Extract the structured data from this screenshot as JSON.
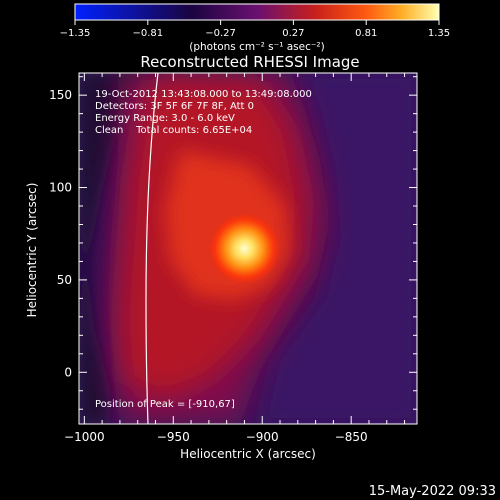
{
  "chart_data": {
    "type": "heatmap",
    "title": "Reconstructed RHESSI Image",
    "xlabel": "Heliocentric X (arcsec)",
    "ylabel": "Heliocentric Y (arcsec)",
    "xlim": [
      -1003,
      -813
    ],
    "ylim": [
      -28,
      162
    ],
    "x_ticks": [
      -1000,
      -950,
      -900,
      -850
    ],
    "y_ticks": [
      0,
      50,
      100,
      150
    ],
    "colorbar": {
      "min": -1.35,
      "max": 1.35,
      "ticks": [
        "-1.35",
        "-0.81",
        "-0.27",
        "0.27",
        "0.81",
        "1.35"
      ],
      "unit_label": "(photons cm⁻² s⁻¹ asec⁻²)",
      "colors": [
        "#0020ff",
        "#000000",
        "#3a0a5a",
        "#b01e28",
        "#ff3a10",
        "#ffb020",
        "#ffffb0"
      ]
    },
    "annotations": [
      "19-Oct-2012 13:43:08.000 to 13:49:08.000",
      "Detectors: 3F 5F 6F 7F 8F, Att 0",
      "Energy Range: 3.0 - 6.0 keV",
      "Clean    Total counts: 6.65E+04"
    ],
    "peak_label": "Position of Peak = [-910,67]",
    "peak": {
      "x": -910,
      "y": 67
    },
    "background_color": "#34145a"
  },
  "footer_date": "15-May-2022 09:33"
}
